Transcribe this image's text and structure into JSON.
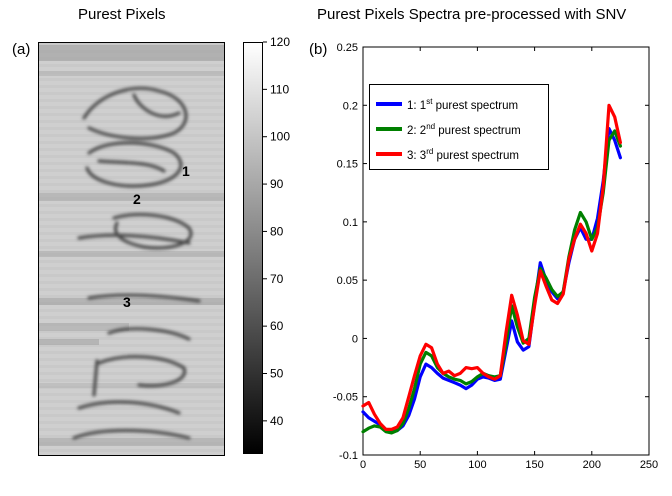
{
  "left_panel": {
    "title": "Purest Pixels",
    "label": "(a)",
    "colorbar_ticks": [
      "120",
      "110",
      "100",
      "90",
      "80",
      "70",
      "60",
      "50",
      "40"
    ],
    "colorbar_range": [
      33,
      120
    ],
    "pixel_markers": [
      "1",
      "2",
      "3"
    ]
  },
  "right_panel": {
    "title": "Purest Pixels Spectra pre-processed with SNV",
    "label": "(b)"
  },
  "chart_data": {
    "type": "line",
    "title": "Purest Pixels Spectra pre-processed with SNV",
    "xlabel": "",
    "ylabel": "",
    "xlim": [
      0,
      250
    ],
    "ylim": [
      -0.1,
      0.25
    ],
    "xticks": [
      "0",
      "50",
      "100",
      "150",
      "200",
      "250"
    ],
    "yticks": [
      "-0.1",
      "-0.05",
      "0",
      "0.05",
      "0.1",
      "0.15",
      "0.2",
      "0.25"
    ],
    "grid": false,
    "legend_position": "top-left",
    "series": [
      {
        "name": "1: 1st purest spectrum",
        "legend_prefix": "1: 1",
        "legend_sup": "st",
        "legend_suffix": " purest spectrum",
        "color": "#0000ff",
        "x": [
          0,
          5,
          10,
          15,
          20,
          25,
          30,
          35,
          40,
          45,
          50,
          55,
          60,
          65,
          70,
          75,
          80,
          85,
          90,
          95,
          100,
          105,
          110,
          115,
          120,
          125,
          130,
          135,
          140,
          145,
          150,
          155,
          160,
          165,
          170,
          175,
          180,
          185,
          190,
          195,
          200,
          205,
          210,
          215,
          220,
          225
        ],
        "y": [
          -0.063,
          -0.068,
          -0.071,
          -0.074,
          -0.078,
          -0.08,
          -0.079,
          -0.075,
          -0.066,
          -0.052,
          -0.033,
          -0.022,
          -0.025,
          -0.03,
          -0.034,
          -0.036,
          -0.038,
          -0.04,
          -0.043,
          -0.04,
          -0.035,
          -0.033,
          -0.034,
          -0.036,
          -0.035,
          -0.01,
          0.015,
          -0.003,
          -0.01,
          -0.007,
          0.03,
          0.065,
          0.05,
          0.04,
          0.034,
          0.04,
          0.065,
          0.085,
          0.095,
          0.085,
          0.085,
          0.103,
          0.135,
          0.18,
          0.17,
          0.155
        ]
      },
      {
        "name": "2: 2nd purest spectrum",
        "legend_prefix": "2: 2",
        "legend_sup": "nd",
        "legend_suffix": " purest spectrum",
        "color": "#008000",
        "x": [
          0,
          5,
          10,
          15,
          20,
          25,
          30,
          35,
          40,
          45,
          50,
          55,
          60,
          65,
          70,
          75,
          80,
          85,
          90,
          95,
          100,
          105,
          110,
          115,
          120,
          125,
          130,
          135,
          140,
          145,
          150,
          155,
          160,
          165,
          170,
          175,
          180,
          185,
          190,
          195,
          200,
          205,
          210,
          215,
          220,
          225
        ],
        "y": [
          -0.08,
          -0.077,
          -0.075,
          -0.076,
          -0.08,
          -0.081,
          -0.079,
          -0.073,
          -0.06,
          -0.043,
          -0.022,
          -0.012,
          -0.015,
          -0.025,
          -0.03,
          -0.033,
          -0.035,
          -0.036,
          -0.039,
          -0.037,
          -0.033,
          -0.03,
          -0.032,
          -0.033,
          -0.032,
          -0.005,
          0.028,
          0.01,
          -0.004,
          0.0,
          0.035,
          0.06,
          0.052,
          0.042,
          0.036,
          0.04,
          0.07,
          0.093,
          0.108,
          0.1,
          0.085,
          0.095,
          0.125,
          0.17,
          0.178,
          0.165
        ]
      },
      {
        "name": "3: 3rd purest spectrum",
        "legend_prefix": "3: 3",
        "legend_sup": "rd",
        "legend_suffix": " purest spectrum",
        "color": "#ff0000",
        "x": [
          0,
          5,
          10,
          15,
          20,
          25,
          30,
          35,
          40,
          45,
          50,
          55,
          60,
          65,
          70,
          75,
          80,
          85,
          90,
          95,
          100,
          105,
          110,
          115,
          120,
          125,
          130,
          135,
          140,
          145,
          150,
          155,
          160,
          165,
          170,
          175,
          180,
          185,
          190,
          195,
          200,
          205,
          210,
          215,
          220,
          225
        ],
        "y": [
          -0.058,
          -0.055,
          -0.065,
          -0.073,
          -0.078,
          -0.078,
          -0.076,
          -0.068,
          -0.05,
          -0.032,
          -0.015,
          -0.005,
          -0.008,
          -0.022,
          -0.03,
          -0.028,
          -0.032,
          -0.03,
          -0.025,
          -0.026,
          -0.025,
          -0.03,
          -0.033,
          -0.035,
          -0.032,
          0.005,
          0.037,
          0.02,
          -0.002,
          -0.005,
          0.028,
          0.058,
          0.045,
          0.033,
          0.03,
          0.038,
          0.068,
          0.085,
          0.098,
          0.09,
          0.075,
          0.09,
          0.13,
          0.2,
          0.19,
          0.168
        ]
      }
    ]
  }
}
